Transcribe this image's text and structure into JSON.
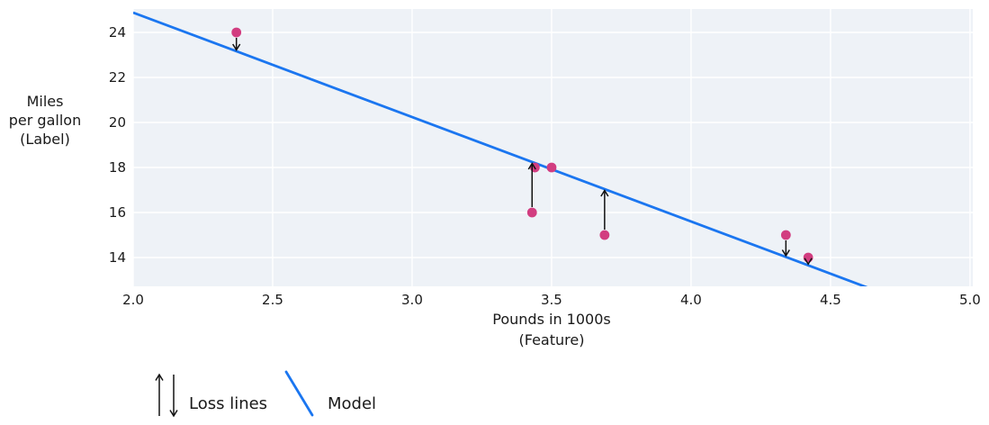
{
  "colors": {
    "background": "#ffffff",
    "plot_bg": "#eef2f7",
    "grid": "#ffffff",
    "model_blue": "#1b76f0",
    "point_pink": "#d23d80",
    "arrow": "#121212",
    "text": "#1a1a1a"
  },
  "chart_data": {
    "type": "scatter",
    "title": "",
    "xlabel": "Pounds in 1000s (Feature)",
    "ylabel": "Miles per gallon (Label)",
    "xlabel_lines": [
      "Pounds in 1000s",
      "(Feature)"
    ],
    "ylabel_lines": [
      "Miles",
      "per gallon",
      "(Label)"
    ],
    "xlim": [
      2.0,
      5.01
    ],
    "ylim": [
      12.72,
      25.04
    ],
    "grid": true,
    "x_ticks": [
      {
        "value": 2.0,
        "label": "2.0"
      },
      {
        "value": 2.5,
        "label": "2.5"
      },
      {
        "value": 3.0,
        "label": "3.0"
      },
      {
        "value": 3.5,
        "label": "3.5"
      },
      {
        "value": 4.0,
        "label": "4.0"
      },
      {
        "value": 4.5,
        "label": "4.5"
      },
      {
        "value": 5.0,
        "label": "5.0"
      }
    ],
    "y_ticks": [
      {
        "value": 14,
        "label": "14"
      },
      {
        "value": 16,
        "label": "16"
      },
      {
        "value": 18,
        "label": "18"
      },
      {
        "value": 20,
        "label": "20"
      },
      {
        "value": 22,
        "label": "22"
      },
      {
        "value": 24,
        "label": "24"
      }
    ],
    "points": [
      {
        "x": 2.37,
        "y": 24
      },
      {
        "x": 3.43,
        "y": 16
      },
      {
        "x": 3.44,
        "y": 18
      },
      {
        "x": 3.5,
        "y": 18
      },
      {
        "x": 3.69,
        "y": 15
      },
      {
        "x": 4.34,
        "y": 15
      },
      {
        "x": 4.42,
        "y": 14
      }
    ],
    "model": {
      "slope": -4.64,
      "intercept": 34.16
    },
    "loss_arrows": [
      {
        "x": 2.37,
        "y_from": 24,
        "y_to": 23.16
      },
      {
        "x": 3.43,
        "y_from": 16,
        "y_to": 18.24
      },
      {
        "x": 3.69,
        "y_from": 15,
        "y_to": 17.04
      },
      {
        "x": 4.34,
        "y_from": 15,
        "y_to": 14.02
      },
      {
        "x": 4.42,
        "y_from": 14,
        "y_to": 13.65
      }
    ],
    "legend": {
      "position": "below-left",
      "items": [
        {
          "label": "Loss lines",
          "symbol": "up-down-arrows"
        },
        {
          "label": "Model",
          "symbol": "blue-line-segment"
        }
      ]
    }
  }
}
